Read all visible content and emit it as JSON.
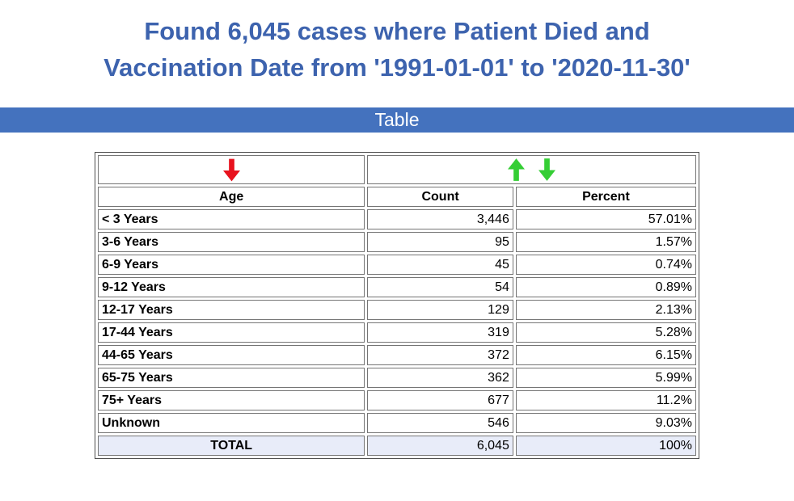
{
  "header": {
    "title_line1": "Found 6,045 cases where Patient Died and",
    "title_line2": "Vaccination Date from '1991-01-01' to '2020-11-30'",
    "section_bar_label": "Table"
  },
  "colors": {
    "title_blue": "#3D63AE",
    "bar_blue": "#4472BE",
    "total_row_bg": "#E8ECF9",
    "sort_red": "#E8121E",
    "sort_green": "#35CE35"
  },
  "table": {
    "sort_icons": {
      "age_column": "red-down-arrow-icon",
      "value_columns": [
        "green-up-arrow-icon",
        "green-down-arrow-icon"
      ]
    },
    "columns": [
      "Age",
      "Count",
      "Percent"
    ],
    "rows": [
      {
        "age": "< 3 Years",
        "count": "3,446",
        "percent": "57.01%"
      },
      {
        "age": "3-6 Years",
        "count": "95",
        "percent": "1.57%"
      },
      {
        "age": "6-9 Years",
        "count": "45",
        "percent": "0.74%"
      },
      {
        "age": "9-12 Years",
        "count": "54",
        "percent": "0.89%"
      },
      {
        "age": "12-17 Years",
        "count": "129",
        "percent": "2.13%"
      },
      {
        "age": "17-44 Years",
        "count": "319",
        "percent": "5.28%"
      },
      {
        "age": "44-65 Years",
        "count": "372",
        "percent": "6.15%"
      },
      {
        "age": "65-75 Years",
        "count": "362",
        "percent": "5.99%"
      },
      {
        "age": "75+ Years",
        "count": "677",
        "percent": "11.2%"
      },
      {
        "age": "Unknown",
        "count": "546",
        "percent": "9.03%"
      }
    ],
    "total": {
      "label": "TOTAL",
      "count": "6,045",
      "percent": "100%"
    }
  }
}
